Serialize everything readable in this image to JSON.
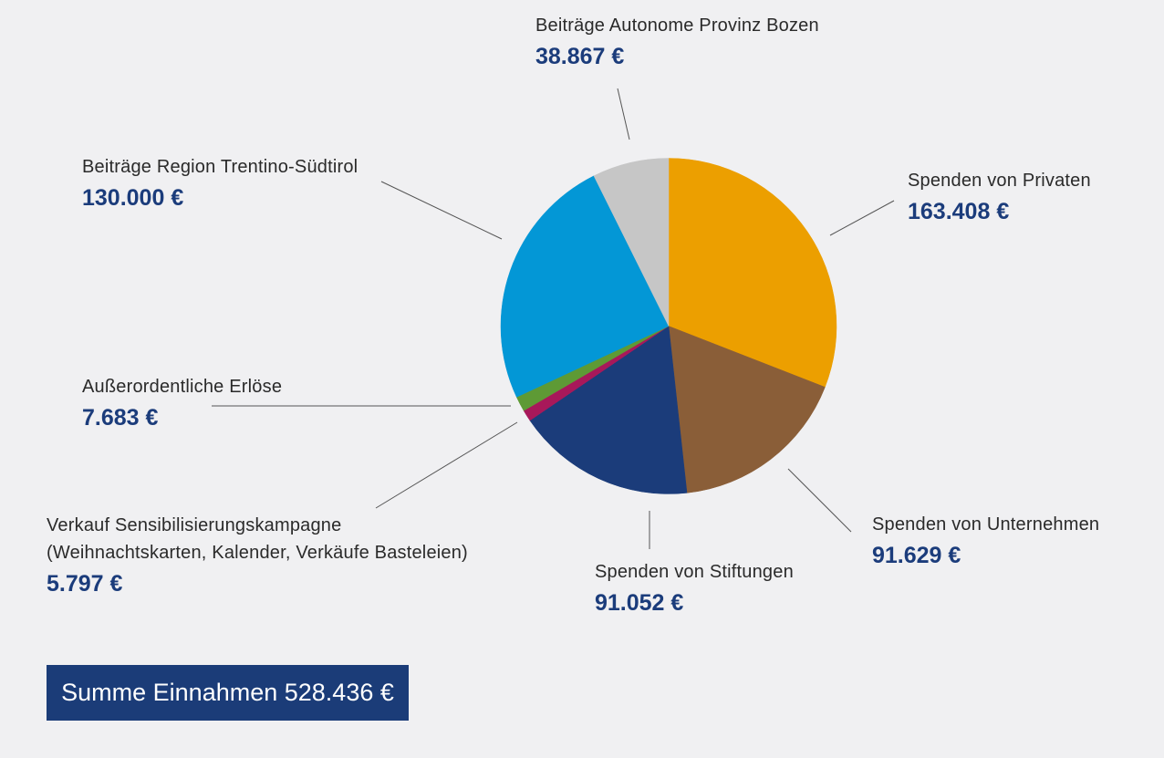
{
  "chart_data": {
    "type": "pie",
    "currency": "€",
    "slices": [
      {
        "label": "Spenden von Privaten",
        "value": 163408,
        "value_label": "163.408 €",
        "color": "#ec9f00"
      },
      {
        "label": "Spenden von Unternehmen",
        "value": 91629,
        "value_label": "91.629 €",
        "color": "#8a5e38"
      },
      {
        "label": "Spenden von Stiftungen",
        "value": 91052,
        "value_label": "91.052 €",
        "color": "#1b3c7a"
      },
      {
        "label": "Verkauf Sensibilisierungskampagne",
        "label_line2": "(Weihnachtskarten, Kalender, Verkäufe Basteleien)",
        "value": 5797,
        "value_label": "5.797 €",
        "color": "#a8185a"
      },
      {
        "label": "Außerordentliche Erlöse",
        "value": 7683,
        "value_label": "7.683 €",
        "color": "#5e9a35"
      },
      {
        "label": "Beiträge Region Trentino-Südtirol",
        "value": 130000,
        "value_label": "130.000 €",
        "color": "#0397d6"
      },
      {
        "label": "Beiträge Autonome Provinz Bozen",
        "value": 38867,
        "value_label": "38.867 €",
        "color": "#c6c6c6"
      }
    ],
    "total_label": "Summe Einnahmen 528.436 €"
  }
}
